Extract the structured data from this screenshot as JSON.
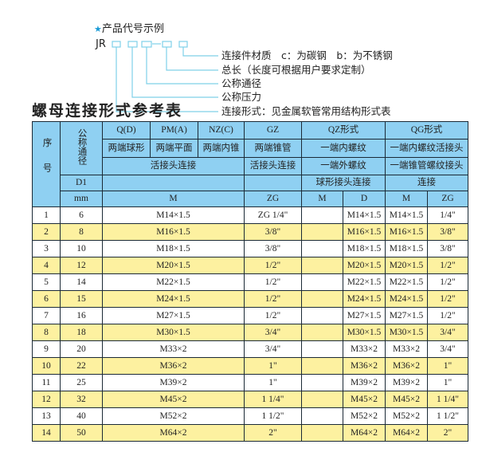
{
  "example": {
    "title": "产品代号示例",
    "code": "JR",
    "labels": [
      "连接件材质　c：为碳钢　b：为不锈钢",
      "总长（长度可根据用户要求定制）",
      "公称通径",
      "公称压力",
      "连接形式：见金属软管常用结构形式表"
    ],
    "line_color": "#7fd0e8"
  },
  "table_title": "螺母连接形式参考表",
  "header": {
    "seq": "序号",
    "nominal": "公称通径",
    "q": "Q(D)",
    "pm": "PM(A)",
    "nz": "NZ(C)",
    "gz": "GZ",
    "qz": "QZ形式",
    "qg": "QG形式",
    "q2": "两端球形",
    "pm2": "两端平面",
    "nz2": "两端内锥",
    "gz2": "两端锥管",
    "qz2": "一端内螺纹",
    "qg2": "一端内螺纹活接头",
    "r3a": "活接头连接",
    "r3b": "活接头连接",
    "qz3": "一端外螺纹",
    "qg3": "一端锥管螺纹接头",
    "d1": "D1",
    "qz4": "球形接头连接",
    "qg4": "连接",
    "mm": "mm",
    "m": "M",
    "zg": "ZG",
    "qzm": "M",
    "qzd": "D",
    "qgm": "M",
    "qgzg": "ZG"
  },
  "colors": {
    "header_bg": "#8fd0f2",
    "stripe": "#fdf1a0"
  },
  "rows": [
    {
      "no": "1",
      "dn": "6",
      "m": "M14×1.5",
      "zg": "ZG 1/4\"",
      "qzm": "",
      "qzd": "M14×1.5",
      "qgm": "M14×1.5",
      "qgzg": "1/4\""
    },
    {
      "no": "2",
      "dn": "8",
      "m": "M16×1.5",
      "zg": "3/8\"",
      "qzm": "",
      "qzd": "M16×1.5",
      "qgm": "M16×1.5",
      "qgzg": "3/8\""
    },
    {
      "no": "3",
      "dn": "10",
      "m": "M18×1.5",
      "zg": "3/8\"",
      "qzm": "",
      "qzd": "M18×1.5",
      "qgm": "M18×1.5",
      "qgzg": "3/8\""
    },
    {
      "no": "4",
      "dn": "12",
      "m": "M20×1.5",
      "zg": "1/2\"",
      "qzm": "",
      "qzd": "M20×1.5",
      "qgm": "M20×1.5",
      "qgzg": "1/2\""
    },
    {
      "no": "5",
      "dn": "14",
      "m": "M22×1.5",
      "zg": "1/2\"",
      "qzm": "",
      "qzd": "M22×1.5",
      "qgm": "M22×1.5",
      "qgzg": "1/2\""
    },
    {
      "no": "6",
      "dn": "15",
      "m": "M24×1.5",
      "zg": "1/2\"",
      "qzm": "",
      "qzd": "M24×1.5",
      "qgm": "M24×1.5",
      "qgzg": "1/2\""
    },
    {
      "no": "7",
      "dn": "16",
      "m": "M27×1.5",
      "zg": "1/2\"",
      "qzm": "",
      "qzd": "M27×1.5",
      "qgm": "M27×1.5",
      "qgzg": "1/2\""
    },
    {
      "no": "8",
      "dn": "18",
      "m": "M30×1.5",
      "zg": "3/4\"",
      "qzm": "",
      "qzd": "M30×1.5",
      "qgm": "M30×1.5",
      "qgzg": "3/4\""
    },
    {
      "no": "9",
      "dn": "20",
      "m": "M33×2",
      "zg": "3/4\"",
      "qzm": "",
      "qzd": "M33×2",
      "qgm": "M33×2",
      "qgzg": "3/4\""
    },
    {
      "no": "10",
      "dn": "22",
      "m": "M36×2",
      "zg": "1\"",
      "qzm": "",
      "qzd": "M36×2",
      "qgm": "M36×2",
      "qgzg": "1\""
    },
    {
      "no": "11",
      "dn": "25",
      "m": "M39×2",
      "zg": "1\"",
      "qzm": "",
      "qzd": "M39×2",
      "qgm": "M39×2",
      "qgzg": "1\""
    },
    {
      "no": "12",
      "dn": "32",
      "m": "M45×2",
      "zg": "1 1/4\"",
      "qzm": "",
      "qzd": "M45×2",
      "qgm": "M45×2",
      "qgzg": "1 1/4\""
    },
    {
      "no": "13",
      "dn": "40",
      "m": "M52×2",
      "zg": "1 1/2\"",
      "qzm": "",
      "qzd": "M52×2",
      "qgm": "M52×2",
      "qgzg": "1 1/2\""
    },
    {
      "no": "14",
      "dn": "50",
      "m": "M64×2",
      "zg": "2\"",
      "qzm": "",
      "qzd": "M64×2",
      "qgm": "M64×2",
      "qgzg": "2\""
    }
  ]
}
